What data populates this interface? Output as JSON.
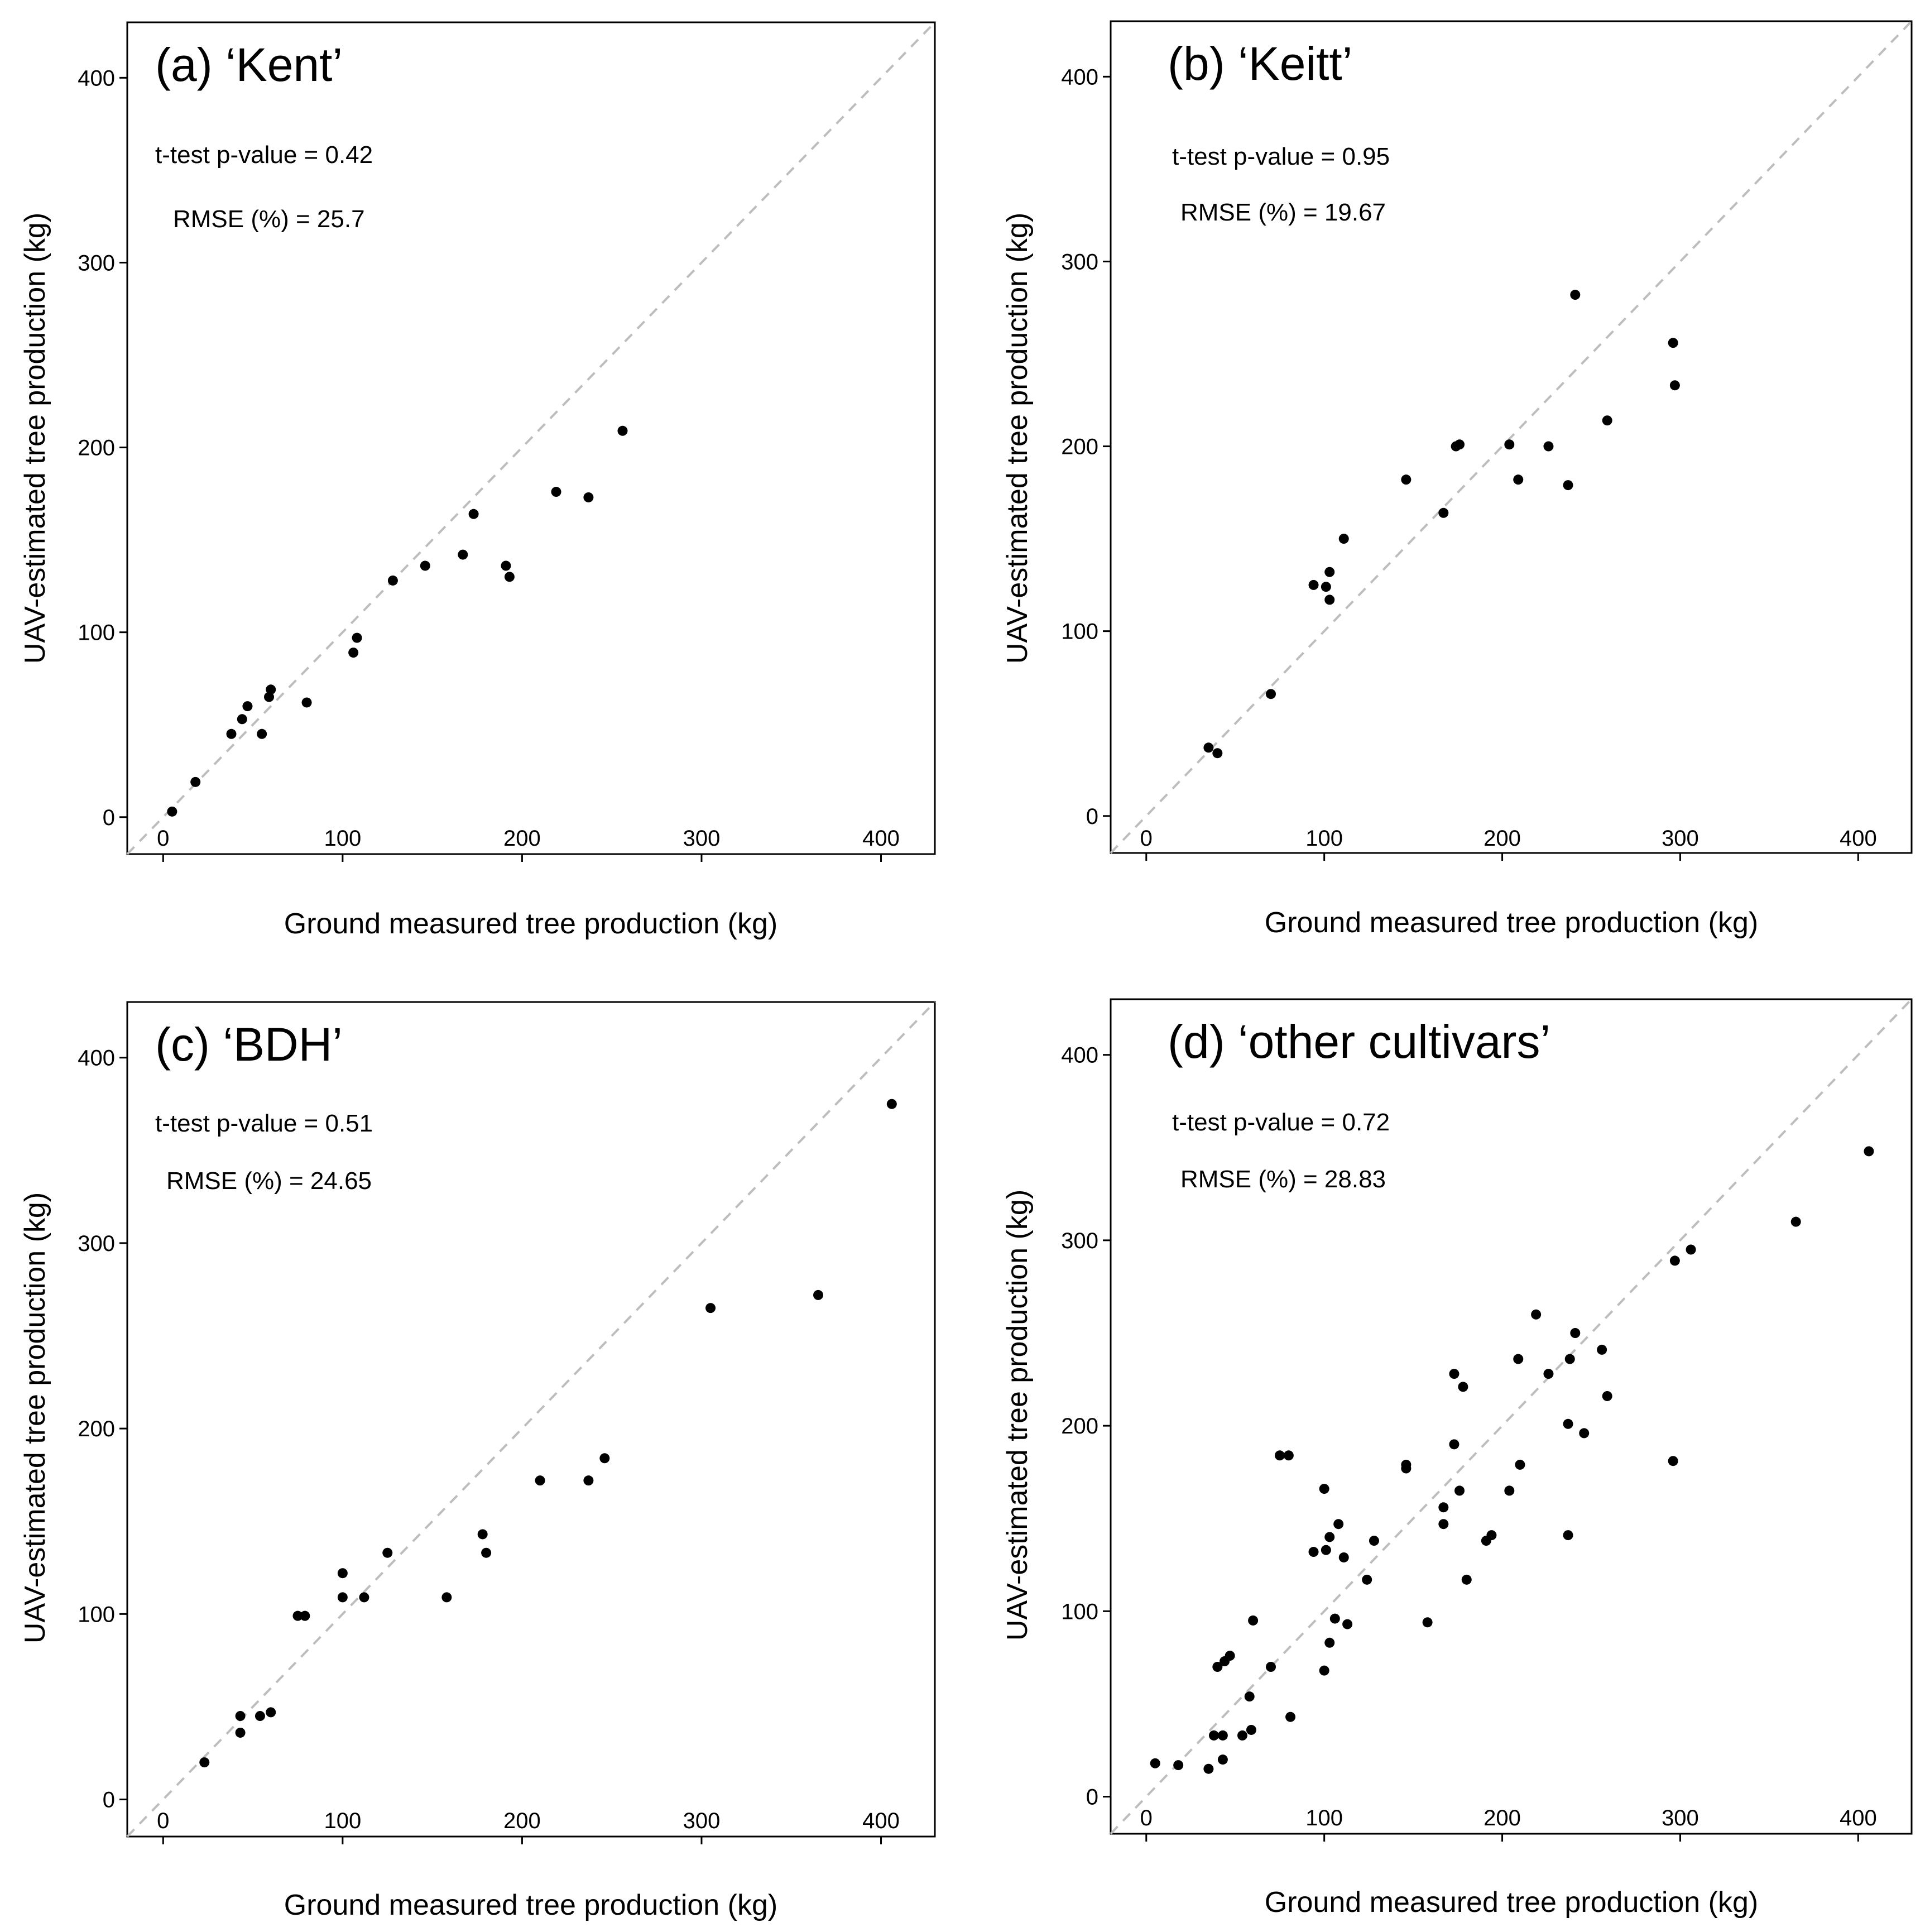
{
  "chart_data": [
    {
      "type": "scatter",
      "title": "(a) ‘Kent’",
      "ttest_label": "t-test p-value = 0.42",
      "rmse_label": "RMSE (%) = 25.7",
      "xlabel": "Ground measured tree production (kg)",
      "ylabel": "UAV-estimated tree production (kg)",
      "xlim": [
        -20,
        430
      ],
      "ylim": [
        -20,
        430
      ],
      "xticks": [
        0,
        100,
        200,
        300,
        400
      ],
      "yticks": [
        0,
        100,
        200,
        300,
        400
      ],
      "identity_line": true,
      "x": [
        5,
        18,
        38,
        44,
        47,
        55,
        59,
        60,
        80,
        106,
        108,
        128,
        146,
        167,
        173,
        191,
        193,
        219,
        237,
        256
      ],
      "y": [
        3,
        19,
        45,
        53,
        60,
        45,
        65,
        69,
        62,
        89,
        97,
        128,
        136,
        142,
        164,
        136,
        130,
        176,
        173,
        209
      ]
    },
    {
      "type": "scatter",
      "title": "(b) ‘Keitt’",
      "ttest_label": "t-test p-value = 0.95",
      "rmse_label": "RMSE (%) = 19.67",
      "xlabel": "Ground measured tree production (kg)",
      "ylabel": "UAV-estimated tree production (kg)",
      "xlim": [
        -20,
        430
      ],
      "ylim": [
        -20,
        430
      ],
      "xticks": [
        0,
        100,
        200,
        300,
        400
      ],
      "yticks": [
        0,
        100,
        200,
        300,
        400
      ],
      "identity_line": true,
      "x": [
        35,
        40,
        70,
        94,
        101,
        103,
        103,
        111,
        146,
        167,
        174,
        176,
        204,
        209,
        226,
        237,
        241,
        259,
        296,
        297
      ],
      "y": [
        37,
        34,
        66,
        125,
        124,
        117,
        132,
        150,
        182,
        164,
        200,
        201,
        201,
        182,
        200,
        179,
        282,
        214,
        256,
        233
      ]
    },
    {
      "type": "scatter",
      "title": "(c) ‘BDH’",
      "ttest_label": "t-test p-value = 0.51",
      "rmse_label": "RMSE (%) = 24.65",
      "xlabel": "Ground measured tree production (kg)",
      "ylabel": "UAV-estimated tree production (kg)",
      "xlim": [
        -20,
        430
      ],
      "ylim": [
        -20,
        430
      ],
      "xticks": [
        0,
        100,
        200,
        300,
        400
      ],
      "yticks": [
        0,
        100,
        200,
        300,
        400
      ],
      "identity_line": true,
      "x": [
        23,
        43,
        43,
        54,
        60,
        75,
        79,
        100,
        100,
        112,
        125,
        158,
        178,
        180,
        210,
        237,
        246,
        305,
        365,
        406
      ],
      "y": [
        20,
        36,
        45,
        45,
        47,
        99,
        99,
        109,
        122,
        109,
        133,
        109,
        143,
        133,
        172,
        172,
        184,
        265,
        272,
        375
      ]
    },
    {
      "type": "scatter",
      "title": "(d) ‘other cultivars’",
      "ttest_label": "t-test p-value = 0.72",
      "rmse_label": "RMSE (%) = 28.83",
      "xlabel": "Ground measured tree production (kg)",
      "ylabel": "UAV-estimated tree production (kg)",
      "xlim": [
        -20,
        430
      ],
      "ylim": [
        -20,
        430
      ],
      "xticks": [
        0,
        100,
        200,
        300,
        400
      ],
      "yticks": [
        0,
        100,
        200,
        300,
        400
      ],
      "identity_line": true,
      "x": [
        5,
        18,
        35,
        38,
        40,
        43,
        43,
        44,
        47,
        54,
        58,
        59,
        60,
        70,
        75,
        80,
        81,
        94,
        100,
        100,
        101,
        103,
        103,
        106,
        108,
        111,
        113,
        124,
        128,
        146,
        146,
        158,
        167,
        167,
        173,
        173,
        176,
        178,
        180,
        191,
        194,
        204,
        209,
        210,
        219,
        226,
        237,
        237,
        238,
        241,
        246,
        256,
        259,
        296,
        297,
        306,
        365,
        406
      ],
      "y": [
        18,
        17,
        15,
        33,
        70,
        33,
        20,
        73,
        76,
        33,
        54,
        36,
        95,
        70,
        184,
        184,
        43,
        132,
        68,
        166,
        133,
        83,
        140,
        96,
        147,
        129,
        93,
        117,
        138,
        179,
        177,
        94,
        156,
        147,
        228,
        190,
        165,
        221,
        117,
        138,
        141,
        165,
        236,
        179,
        260,
        228,
        141,
        201,
        236,
        250,
        196,
        241,
        216,
        181,
        289,
        295,
        310,
        348
      ]
    }
  ]
}
